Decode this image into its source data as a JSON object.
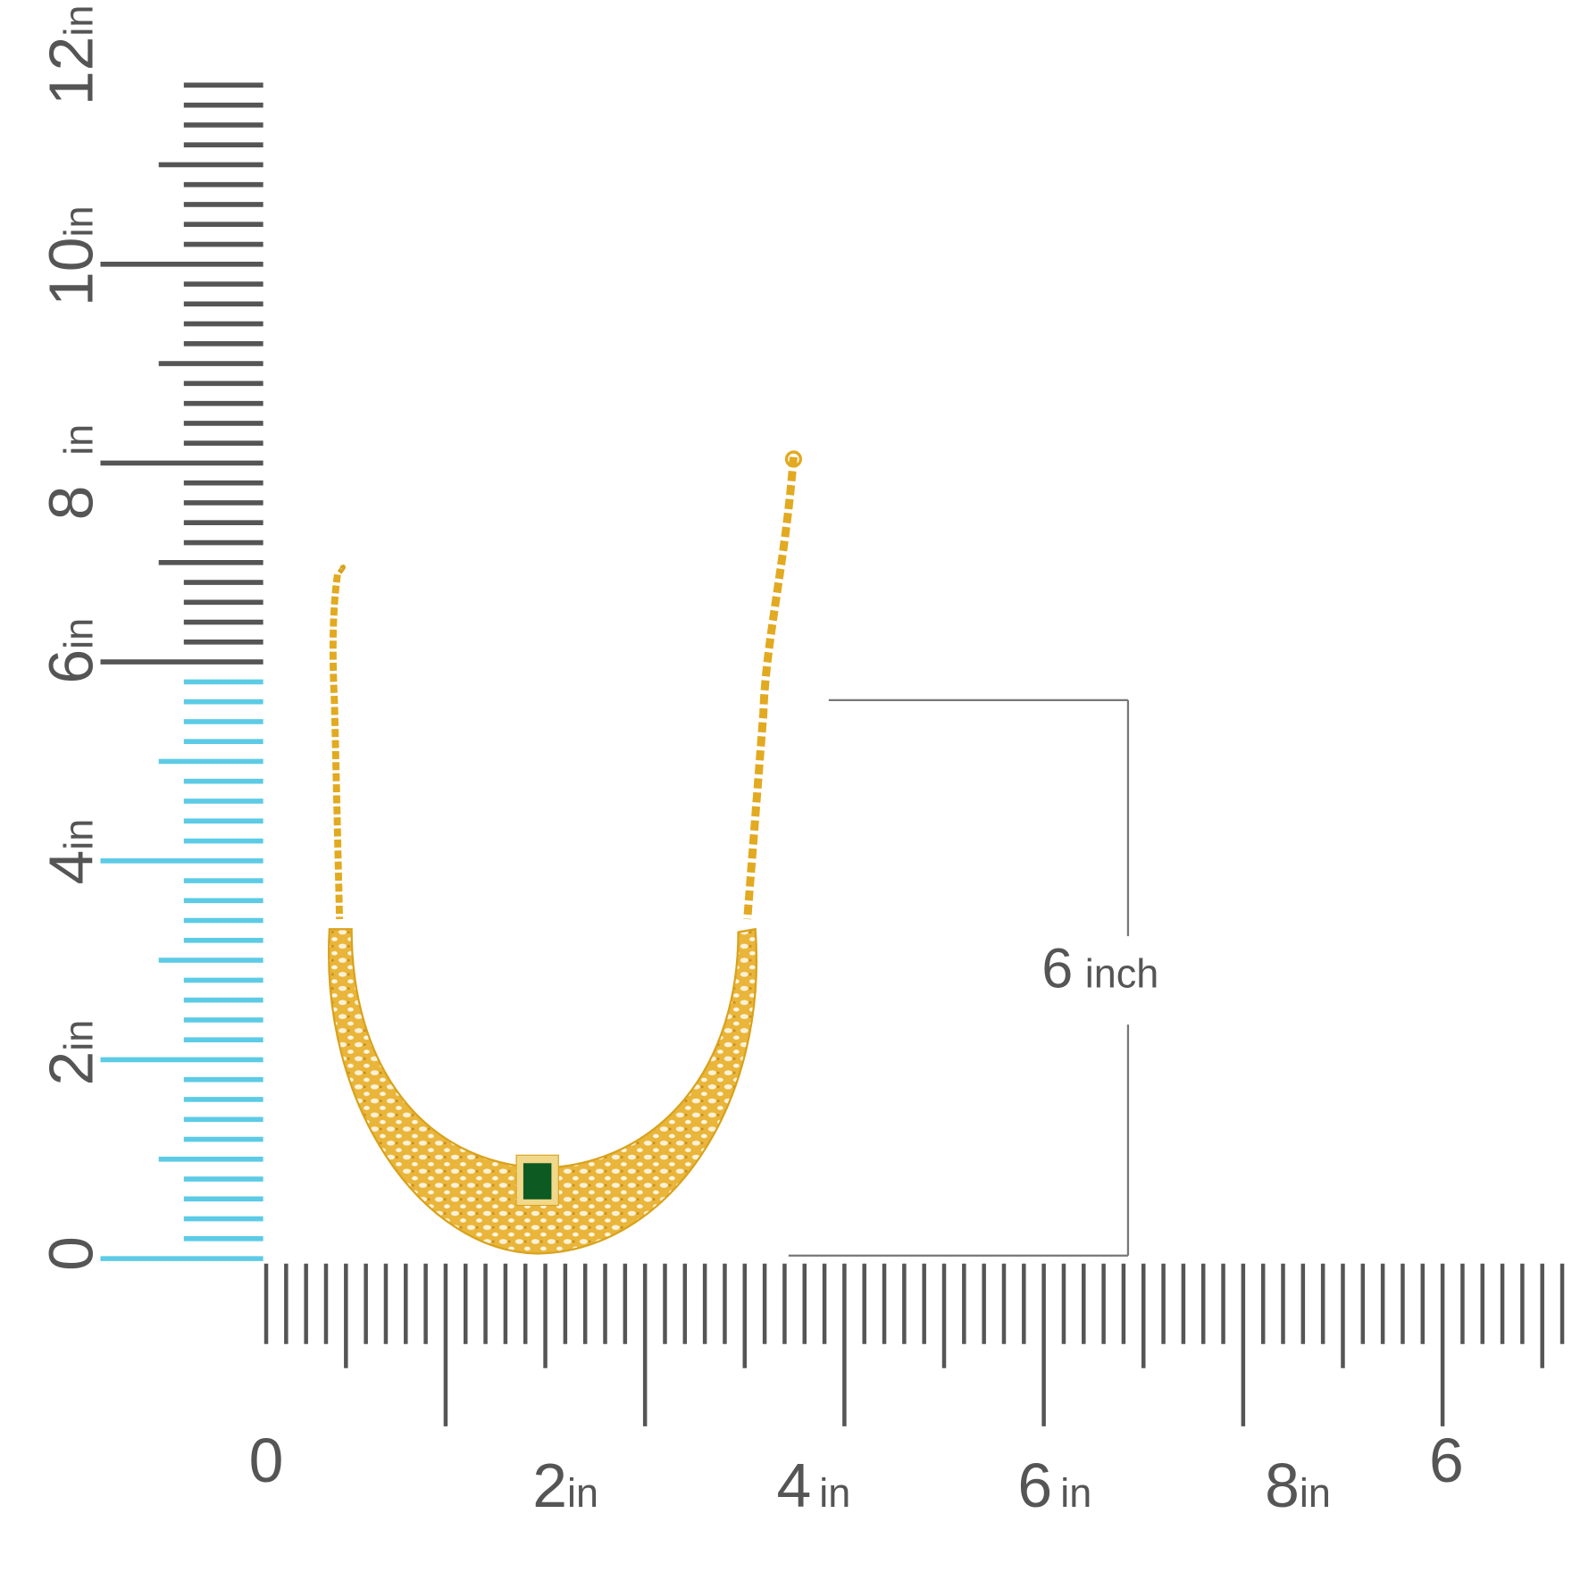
{
  "vertical_ruler": {
    "labels": [
      {
        "number": "0"
      },
      {
        "number": "2",
        "unit": "in"
      },
      {
        "number": "4",
        "unit": "in"
      },
      {
        "number": "6",
        "unit": "in"
      },
      {
        "number": "8",
        "unit": "in"
      },
      {
        "number": "10",
        "unit": "in"
      },
      {
        "number": "12",
        "unit": "in"
      }
    ]
  },
  "horizontal_ruler": {
    "labels": [
      {
        "number": "0"
      },
      {
        "number": "2",
        "unit": "in"
      },
      {
        "number": "4",
        "unit": "in"
      },
      {
        "number": "6",
        "unit": "in"
      },
      {
        "number": "8",
        "unit": "in"
      },
      {
        "number": "6"
      }
    ]
  },
  "dimension": {
    "number": "6",
    "unit": "inch"
  }
}
